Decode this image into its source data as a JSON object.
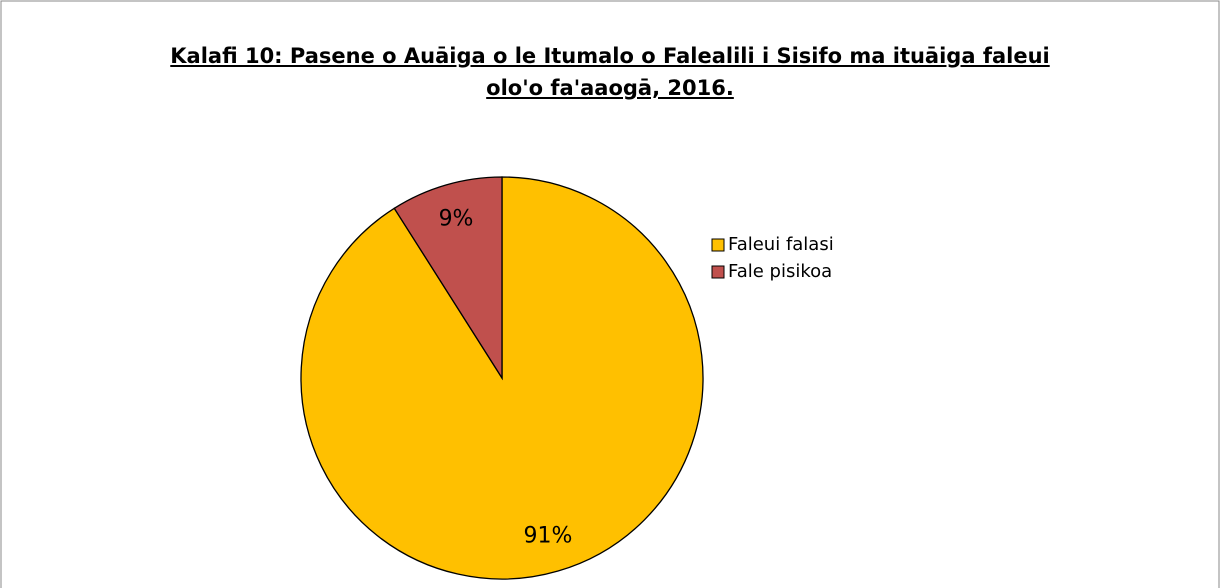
{
  "chart_data": {
    "type": "pie",
    "title": "Kalafi 10: Pasene o Auāiga o le Itumalo o Falealili i Sisifo ma ituāiga faleui olo'o fa'aaogā, 2016.",
    "categories": [
      "Faleui falasi",
      "Fale pisikoa"
    ],
    "values": [
      91,
      9
    ],
    "value_labels": [
      "91%",
      "9%"
    ],
    "colors": [
      "#ffc000",
      "#c0504d"
    ],
    "legend": "right"
  }
}
